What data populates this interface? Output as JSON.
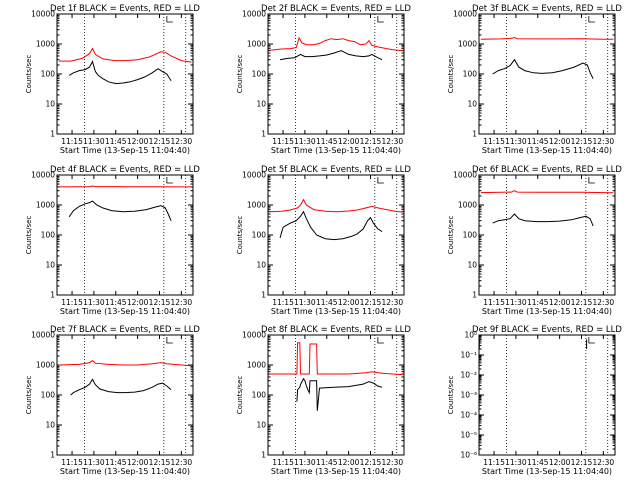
{
  "chart_data": [
    {
      "type": "line",
      "title": "Det 1f BLACK = Events, RED = LLD",
      "xlabel": "Start Time (13-Sep-15 11:04:40)",
      "ylabel": "Counts/sec",
      "x_tick_labels": [
        "11:15",
        "11:30",
        "11:45",
        "12:00",
        "12:15",
        "12:30"
      ],
      "x_tick_minutes": [
        15,
        30,
        45,
        60,
        75,
        90
      ],
      "xlim_minutes": [
        4.67,
        98
      ],
      "y_scale": "log",
      "y_tick_labels": [
        "1",
        "10",
        "100",
        "1000",
        "10000"
      ],
      "ylim": [
        1,
        10000
      ],
      "vlines_minutes": [
        23.5,
        78,
        93
      ],
      "series": [
        {
          "name": "LLD",
          "color": "#ff0000",
          "x": [
            6,
            14,
            22,
            27,
            29,
            31,
            36,
            44,
            52,
            60,
            68,
            72,
            76,
            79,
            83,
            90,
            97
          ],
          "y": [
            270,
            270,
            330,
            480,
            700,
            450,
            320,
            280,
            280,
            300,
            370,
            450,
            550,
            530,
            400,
            280,
            250
          ]
        },
        {
          "name": "Events",
          "color": "#000000",
          "x": [
            13,
            16,
            20,
            24,
            27,
            29,
            31,
            33,
            36,
            40,
            45,
            50,
            55,
            60,
            65,
            70,
            74,
            77,
            80,
            82,
            83
          ],
          "y": [
            90,
            110,
            130,
            140,
            170,
            260,
            120,
            90,
            70,
            55,
            48,
            50,
            55,
            65,
            80,
            110,
            150,
            120,
            100,
            70,
            60
          ]
        }
      ]
    },
    {
      "type": "line",
      "title": "Det 2f BLACK = Events, RED = LLD",
      "xlabel": "Start Time (13-Sep-15 11:04:40)",
      "ylabel": "Counts/sec",
      "x_tick_labels": [
        "11:15",
        "11:30",
        "11:45",
        "12:00",
        "12:15",
        "12:30"
      ],
      "x_tick_minutes": [
        15,
        30,
        45,
        60,
        75,
        90
      ],
      "xlim_minutes": [
        4.67,
        98
      ],
      "y_scale": "log",
      "y_tick_labels": [
        "1",
        "10",
        "100",
        "1000",
        "10000"
      ],
      "ylim": [
        1,
        10000
      ],
      "vlines_minutes": [
        23.5,
        78,
        93
      ],
      "series": [
        {
          "name": "LLD",
          "color": "#ff0000",
          "x": [
            6,
            14,
            20,
            24,
            26,
            28,
            31,
            36,
            40,
            44,
            48,
            52,
            56,
            60,
            64,
            68,
            72,
            74,
            76,
            80,
            86,
            90,
            97
          ],
          "y": [
            620,
            680,
            700,
            760,
            1600,
            1100,
            950,
            950,
            1050,
            1300,
            1500,
            1400,
            1500,
            1300,
            1200,
            950,
            1000,
            1300,
            900,
            800,
            700,
            650,
            600
          ]
        },
        {
          "name": "Events",
          "color": "#000000",
          "x": [
            13,
            18,
            23,
            27,
            30,
            35,
            40,
            45,
            50,
            55,
            60,
            65,
            70,
            74,
            76,
            80,
            83
          ],
          "y": [
            300,
            330,
            350,
            450,
            380,
            380,
            400,
            430,
            500,
            600,
            450,
            400,
            380,
            400,
            450,
            350,
            300
          ]
        }
      ]
    },
    {
      "type": "line",
      "title": "Det 3f BLACK = Events, RED = LLD",
      "xlabel": "Start Time (13-Sep-15 11:04:40)",
      "ylabel": "Counts/sec",
      "x_tick_labels": [
        "11:15",
        "11:30",
        "11:45",
        "12:00",
        "12:15",
        "12:30"
      ],
      "x_tick_minutes": [
        15,
        30,
        45,
        60,
        75,
        90
      ],
      "xlim_minutes": [
        4.67,
        98
      ],
      "y_scale": "log",
      "y_tick_labels": [
        "1",
        "10",
        "100",
        "1000",
        "10000"
      ],
      "ylim": [
        1,
        10000
      ],
      "vlines_minutes": [
        23.5,
        78,
        93
      ],
      "series": [
        {
          "name": "LLD",
          "color": "#ff0000",
          "x": [
            6,
            20,
            27,
            29,
            31,
            45,
            60,
            75,
            90,
            97
          ],
          "y": [
            1450,
            1480,
            1550,
            1650,
            1500,
            1480,
            1480,
            1500,
            1450,
            1430
          ]
        },
        {
          "name": "Events",
          "color": "#000000",
          "x": [
            14,
            18,
            22,
            26,
            29,
            32,
            36,
            42,
            48,
            55,
            62,
            70,
            76,
            79,
            81,
            83
          ],
          "y": [
            100,
            130,
            150,
            190,
            300,
            170,
            130,
            110,
            105,
            110,
            130,
            170,
            230,
            200,
            110,
            70
          ]
        }
      ]
    },
    {
      "type": "line",
      "title": "Det 4f BLACK = Events, RED = LLD",
      "xlabel": "Start Time (13-Sep-15 11:04:40)",
      "ylabel": "Counts/sec",
      "x_tick_labels": [
        "11:15",
        "11:30",
        "11:45",
        "12:00",
        "12:15",
        "12:30"
      ],
      "x_tick_minutes": [
        15,
        30,
        45,
        60,
        75,
        90
      ],
      "xlim_minutes": [
        4.67,
        98
      ],
      "y_scale": "log",
      "y_tick_labels": [
        "1",
        "10",
        "100",
        "1000",
        "10000"
      ],
      "ylim": [
        1,
        10000
      ],
      "vlines_minutes": [
        23.5,
        78,
        93
      ],
      "series": [
        {
          "name": "LLD",
          "color": "#ff0000",
          "x": [
            6,
            20,
            27,
            29,
            31,
            45,
            60,
            75,
            90,
            97
          ],
          "y": [
            4000,
            4050,
            4100,
            4300,
            4100,
            4100,
            4050,
            4050,
            4000,
            4000
          ]
        },
        {
          "name": "Events",
          "color": "#000000",
          "x": [
            13,
            16,
            20,
            24,
            27,
            29,
            32,
            36,
            42,
            50,
            58,
            66,
            72,
            76,
            79,
            81,
            83
          ],
          "y": [
            400,
            650,
            900,
            1100,
            1200,
            1350,
            1000,
            800,
            650,
            600,
            620,
            700,
            850,
            950,
            800,
            500,
            300
          ]
        }
      ]
    },
    {
      "type": "line",
      "title": "Det 5f BLACK = Events, RED = LLD",
      "xlabel": "Start Time (13-Sep-15 11:04:40)",
      "ylabel": "Counts/sec",
      "x_tick_labels": [
        "11:15",
        "11:30",
        "11:45",
        "12:00",
        "12:15",
        "12:30"
      ],
      "x_tick_minutes": [
        15,
        30,
        45,
        60,
        75,
        90
      ],
      "xlim_minutes": [
        4.67,
        98
      ],
      "y_scale": "log",
      "y_tick_labels": [
        "1",
        "10",
        "100",
        "1000",
        "10000"
      ],
      "ylim": [
        1,
        10000
      ],
      "vlines_minutes": [
        23.5,
        78,
        93
      ],
      "series": [
        {
          "name": "LLD",
          "color": "#ff0000",
          "x": [
            6,
            14,
            20,
            25,
            27,
            29,
            31,
            36,
            44,
            52,
            60,
            66,
            72,
            76,
            80,
            86,
            92,
            97
          ],
          "y": [
            600,
            620,
            680,
            800,
            1000,
            1500,
            1000,
            700,
            620,
            600,
            630,
            680,
            800,
            900,
            800,
            700,
            620,
            580
          ]
        },
        {
          "name": "Events",
          "color": "#000000",
          "x": [
            13,
            15,
            20,
            24,
            27,
            29,
            31,
            34,
            38,
            44,
            50,
            56,
            62,
            66,
            70,
            73,
            75,
            77,
            80,
            83
          ],
          "y": [
            80,
            180,
            250,
            300,
            420,
            600,
            350,
            180,
            100,
            75,
            70,
            75,
            90,
            110,
            160,
            300,
            380,
            250,
            160,
            130
          ]
        }
      ]
    },
    {
      "type": "line",
      "title": "Det 6f BLACK = Events, RED = LLD",
      "xlabel": "Start Time (13-Sep-15 11:04:40)",
      "ylabel": "Counts/sec",
      "x_tick_labels": [
        "11:15",
        "11:30",
        "11:45",
        "12:00",
        "12:15",
        "12:30"
      ],
      "x_tick_minutes": [
        15,
        30,
        45,
        60,
        75,
        90
      ],
      "xlim_minutes": [
        4.67,
        98
      ],
      "y_scale": "log",
      "y_tick_labels": [
        "1",
        "10",
        "100",
        "1000",
        "10000"
      ],
      "ylim": [
        1,
        10000
      ],
      "vlines_minutes": [
        23.5,
        78,
        93
      ],
      "series": [
        {
          "name": "LLD",
          "color": "#ff0000",
          "x": [
            6,
            20,
            27,
            29,
            31,
            45,
            60,
            75,
            90,
            97
          ],
          "y": [
            2600,
            2650,
            2700,
            3000,
            2700,
            2650,
            2650,
            2650,
            2600,
            2550
          ]
        },
        {
          "name": "Events",
          "color": "#000000",
          "x": [
            14,
            18,
            22,
            26,
            29,
            32,
            36,
            44,
            52,
            60,
            68,
            74,
            78,
            81,
            83
          ],
          "y": [
            250,
            300,
            320,
            350,
            500,
            350,
            300,
            280,
            280,
            290,
            320,
            380,
            420,
            350,
            200
          ]
        }
      ]
    },
    {
      "type": "line",
      "title": "Det 7f BLACK = Events, RED = LLD",
      "xlabel": "Start Time (13-Sep-15 11:04:40)",
      "ylabel": "Counts/sec",
      "x_tick_labels": [
        "11:15",
        "11:30",
        "11:45",
        "12:00",
        "12:15",
        "12:30"
      ],
      "x_tick_minutes": [
        15,
        30,
        45,
        60,
        75,
        90
      ],
      "xlim_minutes": [
        4.67,
        98
      ],
      "y_scale": "log",
      "y_tick_labels": [
        "1",
        "10",
        "100",
        "1000",
        "10000"
      ],
      "ylim": [
        1,
        10000
      ],
      "vlines_minutes": [
        23.5,
        78,
        93
      ],
      "series": [
        {
          "name": "LLD",
          "color": "#ff0000",
          "x": [
            6,
            20,
            27,
            29,
            31,
            40,
            50,
            60,
            70,
            76,
            80,
            90,
            97
          ],
          "y": [
            1000,
            1050,
            1200,
            1400,
            1150,
            1050,
            1000,
            1000,
            1100,
            1200,
            1100,
            1000,
            950
          ]
        },
        {
          "name": "Events",
          "color": "#000000",
          "x": [
            14,
            16,
            20,
            24,
            27,
            29,
            31,
            34,
            40,
            46,
            52,
            58,
            64,
            70,
            74,
            77,
            80,
            83
          ],
          "y": [
            100,
            120,
            150,
            180,
            230,
            330,
            220,
            160,
            130,
            120,
            120,
            125,
            140,
            180,
            230,
            250,
            200,
            150
          ]
        }
      ]
    },
    {
      "type": "line",
      "title": "Det 8f BLACK = Events, RED = LLD",
      "xlabel": "Start Time (13-Sep-15 11:04:40)",
      "ylabel": "Counts/sec",
      "x_tick_labels": [
        "11:15",
        "11:30",
        "11:45",
        "12:00",
        "12:15",
        "12:30"
      ],
      "x_tick_minutes": [
        15,
        30,
        45,
        60,
        75,
        90
      ],
      "xlim_minutes": [
        4.67,
        98
      ],
      "y_scale": "log",
      "y_tick_labels": [
        "1",
        "10",
        "100",
        "1000",
        "10000"
      ],
      "ylim": [
        1,
        10000
      ],
      "vlines_minutes": [
        23.5,
        78,
        93
      ],
      "series": [
        {
          "name": "LLD",
          "color": "#ff0000",
          "x": [
            6,
            20,
            24.5,
            25,
            26.5,
            27,
            29,
            30,
            33,
            33.5,
            38,
            38.5,
            45,
            60,
            72,
            76,
            80,
            90,
            97
          ],
          "y": [
            500,
            500,
            500,
            5500,
            5500,
            500,
            500,
            500,
            500,
            5000,
            5000,
            500,
            500,
            500,
            550,
            600,
            550,
            500,
            480
          ]
        },
        {
          "name": "Events",
          "color": "#000000",
          "x": [
            24.5,
            25,
            26.5,
            27,
            28,
            29,
            30,
            31,
            32,
            33,
            33.5,
            38,
            38.5,
            40,
            50,
            60,
            70,
            74,
            77,
            80,
            83
          ],
          "y": [
            60,
            150,
            180,
            220,
            280,
            350,
            300,
            200,
            150,
            120,
            300,
            300,
            30,
            170,
            180,
            190,
            230,
            280,
            250,
            200,
            180
          ]
        }
      ]
    },
    {
      "type": "line",
      "title": "Det 9f BLACK = Events, RED = LLD",
      "xlabel": "Start Time (13-Sep-15 11:04:40)",
      "ylabel": "Counts/sec",
      "x_tick_labels": [
        "11:15",
        "11:30",
        "11:45",
        "12:00",
        "12:15",
        "12:30"
      ],
      "x_tick_minutes": [
        15,
        30,
        45,
        60,
        75,
        90
      ],
      "xlim_minutes": [
        4.67,
        98
      ],
      "y_scale": "log",
      "y_tick_labels": [
        "10⁰",
        "10⁻¹",
        "10⁻²",
        "10⁻³",
        "10⁻⁴",
        "10⁻⁵",
        "10⁻⁶"
      ],
      "y_tick_values": [
        1,
        0.1,
        0.01,
        0.001,
        0.0001,
        1e-05,
        1e-06
      ],
      "ylim": [
        1,
        1e-06
      ],
      "vlines_minutes": [
        23.5,
        78,
        93
      ],
      "series": [
        {
          "name": "Events",
          "color": "#000000",
          "x": [
            4.9,
            4.9
          ],
          "y": [
            0.6,
            0.2
          ]
        },
        {
          "name": "Events",
          "color": "#000000",
          "x": [
            78.5,
            78.5
          ],
          "y": [
            0.6,
            0.2
          ]
        }
      ]
    }
  ]
}
